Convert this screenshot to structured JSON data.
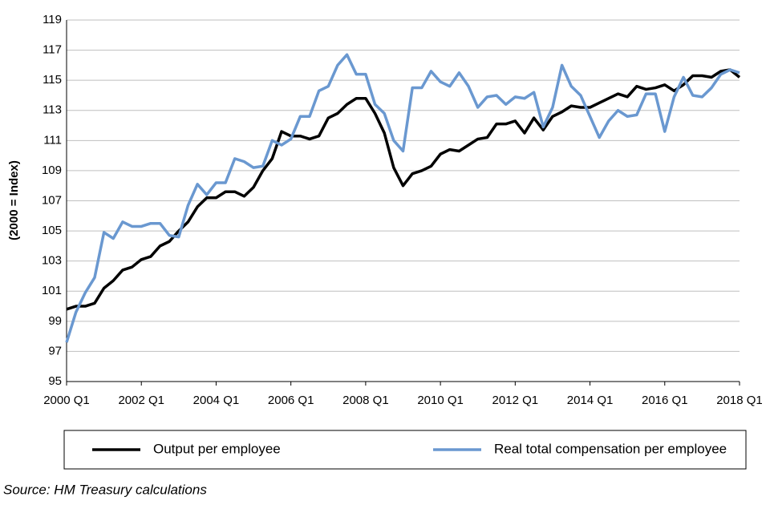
{
  "chart_data": {
    "type": "line",
    "y_label": "(2000 = Index)",
    "source": "Source: HM Treasury calculations",
    "categories": [
      "2000 Q1",
      null,
      null,
      null,
      null,
      null,
      null,
      null,
      "2002 Q1",
      null,
      null,
      null,
      null,
      null,
      null,
      null,
      "2004 Q1",
      null,
      null,
      null,
      null,
      null,
      null,
      null,
      "2006 Q1",
      null,
      null,
      null,
      null,
      null,
      null,
      null,
      "2008 Q1",
      null,
      null,
      null,
      null,
      null,
      null,
      null,
      "2010 Q1",
      null,
      null,
      null,
      null,
      null,
      null,
      null,
      "2012 Q1",
      null,
      null,
      null,
      null,
      null,
      null,
      null,
      "2014 Q1",
      null,
      null,
      null,
      null,
      null,
      null,
      null,
      "2016 Q1",
      null,
      null,
      null,
      null,
      null,
      null,
      null,
      "2018 Q1"
    ],
    "series": [
      {
        "name": "Output per employee",
        "color": "#000000",
        "values": [
          99.8,
          100.0,
          100.0,
          100.2,
          101.2,
          101.7,
          102.4,
          102.6,
          103.1,
          103.3,
          104.0,
          104.3,
          105.0,
          105.6,
          106.6,
          107.2,
          107.2,
          107.6,
          107.6,
          107.3,
          107.9,
          109.0,
          109.8,
          111.6,
          111.3,
          111.3,
          111.1,
          111.3,
          112.5,
          112.8,
          113.4,
          113.8,
          113.8,
          112.8,
          111.5,
          109.2,
          108.0,
          108.8,
          109.0,
          109.3,
          110.1,
          110.4,
          110.3,
          110.7,
          111.1,
          111.2,
          112.1,
          112.1,
          112.3,
          111.5,
          112.5,
          111.7,
          112.6,
          112.9,
          113.3,
          113.2,
          113.2,
          113.5,
          113.8,
          114.1,
          113.9,
          114.6,
          114.4,
          114.5,
          114.7,
          114.3,
          114.7,
          115.3,
          115.3,
          115.2,
          115.6,
          115.7,
          115.2
        ]
      },
      {
        "name": "Real total compensation per employee",
        "color": "#6a98d0",
        "values": [
          97.6,
          99.6,
          100.9,
          101.9,
          104.9,
          104.5,
          105.6,
          105.3,
          105.3,
          105.5,
          105.5,
          104.7,
          104.6,
          106.7,
          108.1,
          107.4,
          108.2,
          108.2,
          109.8,
          109.6,
          109.2,
          109.3,
          111.0,
          110.7,
          111.1,
          112.6,
          112.6,
          114.3,
          114.6,
          116.0,
          116.7,
          115.4,
          115.4,
          113.4,
          112.8,
          111.0,
          110.3,
          114.5,
          114.5,
          115.6,
          114.9,
          114.6,
          115.5,
          114.6,
          113.2,
          113.9,
          114.0,
          113.4,
          113.9,
          113.8,
          114.2,
          111.9,
          113.2,
          116.0,
          114.6,
          114.0,
          112.6,
          111.2,
          112.3,
          113.0,
          112.6,
          112.7,
          114.1,
          114.1,
          111.6,
          113.9,
          115.2,
          114.0,
          113.9,
          114.5,
          115.4,
          115.7,
          115.5
        ]
      }
    ],
    "ylim": [
      95,
      119
    ],
    "yticks": [
      95,
      97,
      99,
      101,
      103,
      105,
      107,
      109,
      111,
      113,
      115,
      117,
      119
    ],
    "grid": true
  }
}
